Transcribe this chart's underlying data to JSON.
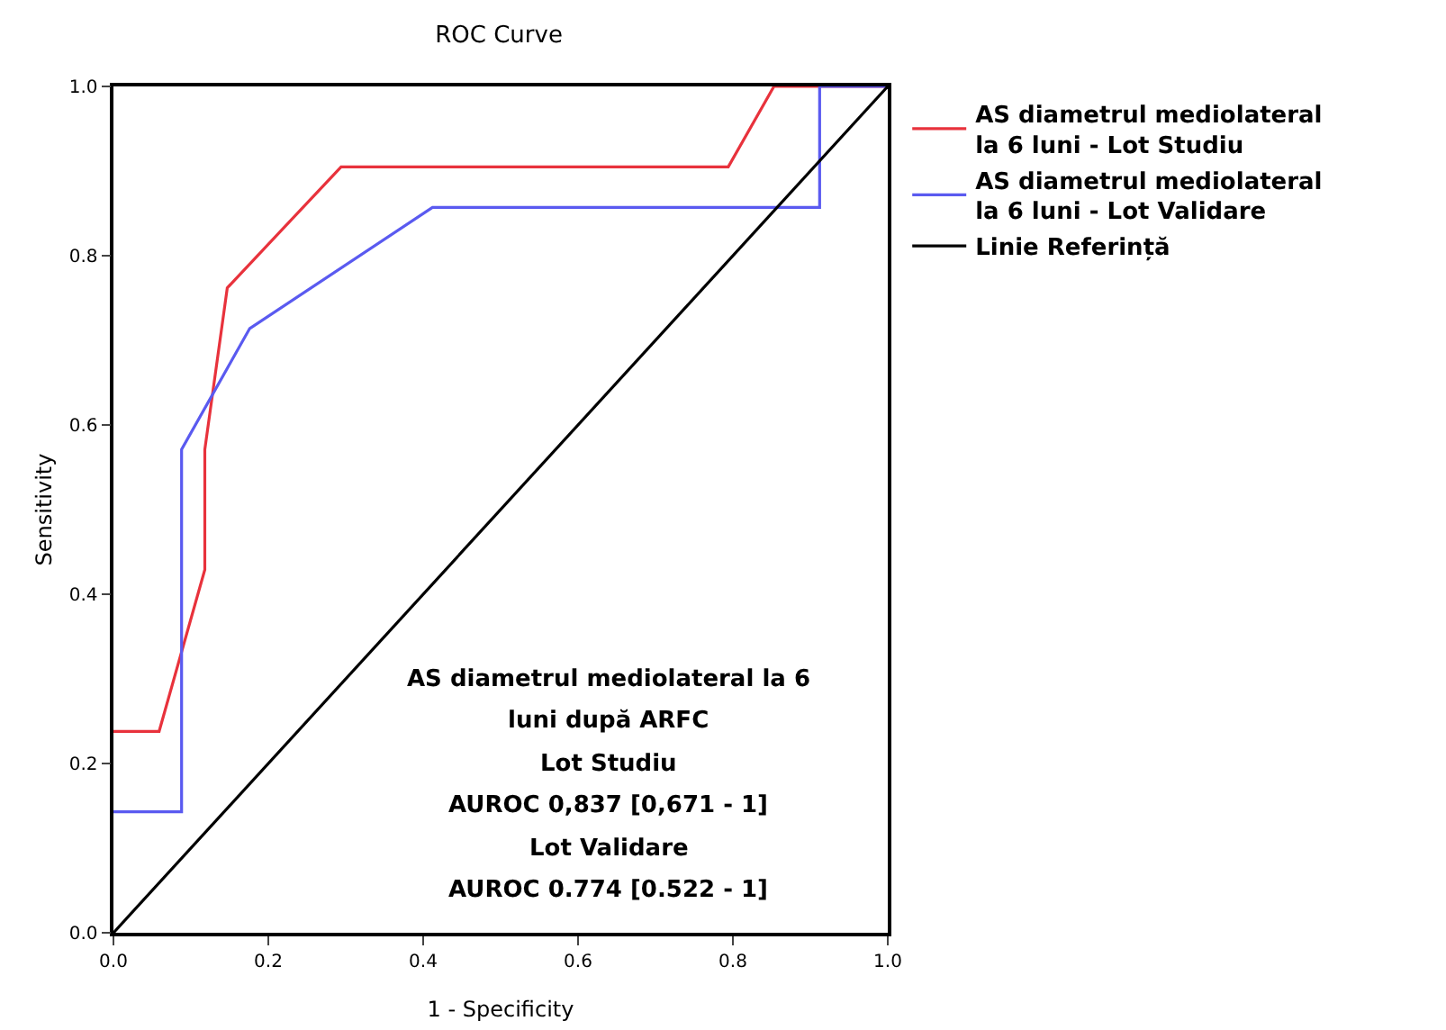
{
  "chart_data": {
    "type": "line",
    "title": "ROC Curve",
    "xlabel": "1 - Specificity",
    "ylabel": "Sensitivity",
    "xlim": [
      0,
      1
    ],
    "ylim": [
      0,
      1
    ],
    "xticks": [
      {
        "value": 0,
        "label": "0.0"
      },
      {
        "value": 0.2,
        "label": "0.2"
      },
      {
        "value": 0.4,
        "label": "0.4"
      },
      {
        "value": 0.6,
        "label": "0.6"
      },
      {
        "value": 0.8,
        "label": "0.8"
      },
      {
        "value": 1,
        "label": "1.0"
      }
    ],
    "yticks": [
      {
        "value": 0,
        "label": "0.0"
      },
      {
        "value": 0.2,
        "label": "0.2"
      },
      {
        "value": 0.4,
        "label": "0.4"
      },
      {
        "value": 0.6,
        "label": "0.6"
      },
      {
        "value": 0.8,
        "label": "0.8"
      },
      {
        "value": 1,
        "label": "1.0"
      }
    ],
    "grid": false,
    "legend": "right",
    "marker": "none",
    "line_style": "solid",
    "series": [
      {
        "name": "AS diametrul mediolateral la 6 luni - Lot Studiu",
        "color": "#e8323c",
        "x": [
          0,
          0.059,
          0.118,
          0.118,
          0.147,
          0.294,
          0.794,
          0.853,
          1
        ],
        "values": [
          0.238,
          0.238,
          0.429,
          0.571,
          0.762,
          0.905,
          0.905,
          1,
          1
        ]
      },
      {
        "name": "AS diametrul mediolateral la 6 luni - Lot Validare",
        "color": "#5a5af0",
        "x": [
          0,
          0.088,
          0.088,
          0.176,
          0.412,
          0.912,
          0.912,
          1
        ],
        "values": [
          0.143,
          0.143,
          0.571,
          0.714,
          0.857,
          0.857,
          1,
          1
        ]
      },
      {
        "name": "Linie Referință",
        "color": "#000000",
        "x": [
          0,
          1
        ],
        "values": [
          0,
          1
        ]
      }
    ],
    "annotations": [
      "AS diametrul mediolateral la 6",
      "luni după ARFC",
      "Lot Studiu",
      "AUROC 0,837 [0,671 - 1]",
      "Lot Validare",
      "AUROC 0.774 [0.522 - 1]"
    ]
  }
}
